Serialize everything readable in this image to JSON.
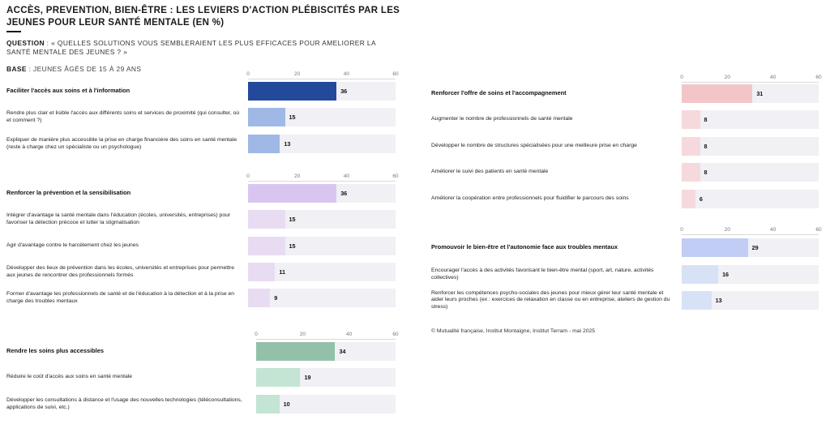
{
  "title": "ACCÈS, PREVENTION, BIEN-ÊTRE : LES LEVIERS D'ACTION PLÉBISCITÉS PAR LES JEUNES POUR LEUR SANTÉ MENTALE (EN %)",
  "question_label": "QUESTION",
  "question_text": " : « QUELLES SOLUTIONS VOUS SEMBLERAIENT LES PLUS EFFICACES POUR AMELIORER LA SANTÉ MENTALE DES JEUNES ? »",
  "base_label": "BASE",
  "base_text": " : JEUNES ÂGÉS DE 15 À 29 ANS",
  "footer": "© Mutualité française, Institut Montaigne, Institut Terram - mai 2025",
  "colors": {
    "navy": "#234a9a",
    "blue_light": "#9fb8e6",
    "purple": "#d9c6f0",
    "purple_light": "#e8dcf3",
    "green": "#93c0a9",
    "green_light": "#c4e4d4",
    "pink": "#f2c6c9",
    "pink_light": "#f6d9dc",
    "periwinkle": "#c2cdf5",
    "periwinkle_light": "#d7e2f7",
    "track": "#f0f0f5"
  },
  "chart_data": [
    {
      "type": "bar",
      "orientation": "horizontal",
      "xlim": [
        0,
        60
      ],
      "ticks": [
        "0",
        "20",
        "40",
        "60"
      ],
      "categories": [
        "Faciliter l'accès aux soins et à l'information",
        "Rendre plus clair et lisible l'accès aux différents soins et services de proximité (qui consulter, où et comment ?)",
        "Expliquer de manière plus accessible la prise en charge financière des soins en santé mentale (reste à charge chez un spécialiste ou un psychologue)"
      ],
      "values": [
        36,
        15,
        13
      ],
      "labels": [
        "36",
        "15",
        "13"
      ],
      "colors": [
        "#234a9a",
        "#9fb8e6",
        "#9fb8e6"
      ]
    },
    {
      "type": "bar",
      "orientation": "horizontal",
      "xlim": [
        0,
        60
      ],
      "ticks": [
        "0",
        "20",
        "40",
        "60"
      ],
      "categories": [
        "Renforcer la prévention et la sensibilisation",
        "Intégrer d'avantage la santé mentale dans l'éducation (écoles, universités, entreprises) pour favoriser la détection précoce et lutter la stigmatisation",
        "Agir d'avantage contre le harcèlement chez les jeunes",
        "Développer des lieux de prévention dans les écoles, universités et entreprises pour permettre aux jeunes de rencontrer des professionnels formés",
        "Former d'avantage les professionnels de santé et de l'éducation à la détection et à la prise en charge des troubles mentaux"
      ],
      "values": [
        36,
        15,
        15,
        11,
        9
      ],
      "labels": [
        "36",
        "15",
        "15",
        "11",
        "9"
      ],
      "colors": [
        "#d9c6f0",
        "#e8dcf3",
        "#e8dcf3",
        "#e8dcf3",
        "#e8dcf3"
      ]
    },
    {
      "type": "bar",
      "orientation": "horizontal",
      "xlim": [
        0,
        60
      ],
      "ticks": [
        "0",
        "20",
        "40",
        "60"
      ],
      "categories": [
        "Rendre les soins plus accessibles",
        "Réduire le coût d'accès aux soins en santé mentale",
        "Développer les consultations à distance et l'usage des nouvelles technologies (téléconsultations, applications de suivi, etc.)"
      ],
      "values": [
        34,
        19,
        10
      ],
      "labels": [
        "34",
        "19",
        "10"
      ],
      "colors": [
        "#93c0a9",
        "#c4e4d4",
        "#c4e4d4"
      ]
    },
    {
      "type": "bar",
      "orientation": "horizontal",
      "xlim": [
        0,
        60
      ],
      "ticks": [
        "0",
        "20",
        "40",
        "60"
      ],
      "categories": [
        "Renforcer l'offre de soins et l'accompagnement",
        "Augmenter le nombre de professionnels de santé mentale",
        "Développer le nombre de structures spécialisées pour une meilleure prise en charge",
        "Améliorer le suivi des patients en santé mentale",
        "Améliorer la coopération entre professionnels pour fluidifier le parcours des soins"
      ],
      "values": [
        31,
        8,
        8,
        8,
        6
      ],
      "labels": [
        "31",
        "8",
        "8",
        "8",
        "6"
      ],
      "colors": [
        "#f2c6c9",
        "#f6d9dc",
        "#f6d9dc",
        "#f6d9dc",
        "#f6d9dc"
      ]
    },
    {
      "type": "bar",
      "orientation": "horizontal",
      "xlim": [
        0,
        60
      ],
      "ticks": [
        "0",
        "20",
        "40",
        "60"
      ],
      "categories": [
        "Promouvoir le bien-être et l'autonomie face aux troubles mentaux",
        "Encourager l'accès à des activités favorisant le bien-être mental (sport, art, nature, activités collectives)",
        "Renforcer les compétences psycho-sociales des jeunes pour mieux gérer leur santé mentale et aider leurs proches (ex : exercices de relaxation en classe ou en entreprise, ateliers de gestion du stress)"
      ],
      "values": [
        29,
        16,
        13
      ],
      "labels": [
        "29",
        "16",
        "13"
      ],
      "colors": [
        "#c2cdf5",
        "#d7e2f7",
        "#d7e2f7"
      ]
    }
  ]
}
